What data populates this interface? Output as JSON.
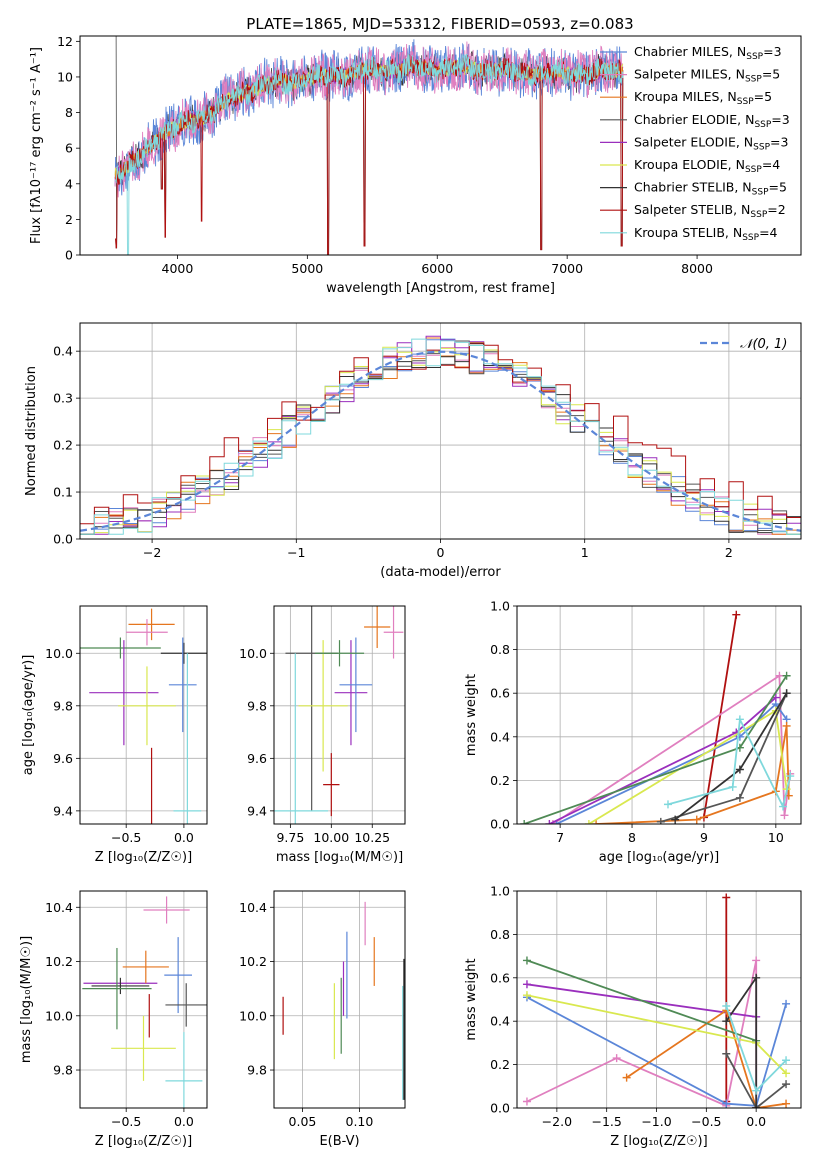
{
  "title": "PLATE=1865, MJD=53312, FIBERID=0593, z=0.083",
  "colors": {
    "chabrier_miles": "#5b86d8",
    "salpeter_miles": "#e07fbf",
    "kroupa_miles": "#e5761f",
    "chabrier_elodie": "#555555",
    "salpeter_elodie": "#9a2fbd",
    "kroupa_elodie": "#d9e84f",
    "chabrier_stelib": "#333333",
    "salpeter_stelib": "#b01010",
    "kroupa_stelib": "#7fd8dc",
    "green": "#4f8a55",
    "gauss": "#5b86d8"
  },
  "chart_data": [
    {
      "id": "spectrum",
      "type": "line",
      "xlabel": "wavelength [Angstrom, rest frame]",
      "ylabel": "Flux [fλ10⁻¹⁷ erg cm⁻² s⁻¹ A⁻¹]",
      "xlim": [
        3250,
        8800
      ],
      "ylim": [
        0,
        12.3
      ],
      "xticks": [
        4000,
        5000,
        6000,
        7000,
        8000
      ],
      "yticks": [
        0,
        2,
        4,
        6,
        8,
        10,
        12
      ],
      "legend_position": "right",
      "legend": [
        {
          "label": "Chabrier MILES, N",
          "sub": "SSP",
          "tail": "=3",
          "color": "#5b86d8"
        },
        {
          "label": "Salpeter MILES, N",
          "sub": "SSP",
          "tail": "=5",
          "color": "#e07fbf"
        },
        {
          "label": "Kroupa MILES, N",
          "sub": "SSP",
          "tail": "=5",
          "color": "#e5761f"
        },
        {
          "label": "Chabrier ELODIE, N",
          "sub": "SSP",
          "tail": "=3",
          "color": "#555555"
        },
        {
          "label": "Salpeter ELODIE, N",
          "sub": "SSP",
          "tail": "=3",
          "color": "#9a2fbd"
        },
        {
          "label": "Kroupa ELODIE, N",
          "sub": "SSP",
          "tail": "=4",
          "color": "#d9e84f"
        },
        {
          "label": "Chabrier STELIB, N",
          "sub": "SSP",
          "tail": "=5",
          "color": "#333333"
        },
        {
          "label": "Salpeter STELIB, N",
          "sub": "SSP",
          "tail": "=2",
          "color": "#b01010"
        },
        {
          "label": "Kroupa STELIB, N",
          "sub": "SSP",
          "tail": "=4",
          "color": "#7fd8dc"
        }
      ],
      "continuum": [
        [
          3520,
          4.6
        ],
        [
          3600,
          4.8
        ],
        [
          3700,
          5.4
        ],
        [
          3800,
          6.2
        ],
        [
          3900,
          6.9
        ],
        [
          4000,
          7.2
        ],
        [
          4100,
          7.5
        ],
        [
          4200,
          7.8
        ],
        [
          4300,
          8.2
        ],
        [
          4400,
          8.7
        ],
        [
          4500,
          9.1
        ],
        [
          4600,
          9.4
        ],
        [
          4700,
          9.6
        ],
        [
          4800,
          9.7
        ],
        [
          4900,
          9.8
        ],
        [
          5000,
          9.9
        ],
        [
          5200,
          10.1
        ],
        [
          5400,
          10.3
        ],
        [
          5600,
          10.4
        ],
        [
          5800,
          10.5
        ],
        [
          6000,
          10.5
        ],
        [
          6200,
          10.5
        ],
        [
          6400,
          10.4
        ],
        [
          6600,
          10.3
        ],
        [
          6800,
          10.2
        ],
        [
          7000,
          10.2
        ],
        [
          7200,
          10.2
        ],
        [
          7300,
          10.3
        ],
        [
          7400,
          10.4
        ]
      ],
      "dips": [
        [
          3520,
          0.9
        ],
        [
          3530,
          0.4
        ],
        [
          3880,
          3.7
        ],
        [
          3905,
          1.0
        ],
        [
          5160,
          0.0
        ],
        [
          5440,
          0.5
        ],
        [
          6800,
          0.3
        ],
        [
          7420,
          0.5
        ]
      ]
    },
    {
      "id": "residuals",
      "type": "histogram",
      "xlabel": "(data-model)/error",
      "ylabel": "Normed distribution",
      "xlim": [
        -2.5,
        2.5
      ],
      "ylim": [
        0,
        0.46
      ],
      "xticks": [
        -2,
        -1,
        0,
        1,
        2
      ],
      "yticks": [
        0.0,
        0.1,
        0.2,
        0.3,
        0.4
      ],
      "legend": [
        {
          "label": "𝒩(0, 1)",
          "style": "dashed",
          "color": "#5b86d8"
        }
      ],
      "legend_position": "top-right",
      "bin_width": 0.1,
      "gaussian": {
        "mean": 0,
        "sigma": 1
      }
    },
    {
      "id": "age_vs_Z",
      "type": "errorbar",
      "xlabel": "Z [log₁₀(Z/Z☉)]",
      "ylabel": "age  [log₁₀(age/yr)]",
      "xlim": [
        -0.9,
        0.2
      ],
      "ylim": [
        9.35,
        10.18
      ],
      "xticks": [
        -0.5,
        0.0
      ],
      "yticks": [
        9.4,
        9.6,
        9.8,
        10.0
      ],
      "points": [
        {
          "x": -0.55,
          "y": 10.02,
          "xerr": 0.35,
          "yerr": 0.04,
          "color": "#4f8a55"
        },
        {
          "x": -0.52,
          "y": 9.85,
          "xerr": 0.3,
          "yerr": 0.2,
          "color": "#9a2fbd"
        },
        {
          "x": -0.32,
          "y": 9.8,
          "xerr": 0.25,
          "yerr": 0.15,
          "color": "#d9e84f"
        },
        {
          "x": -0.28,
          "y": 10.11,
          "xerr": 0.2,
          "yerr": 0.06,
          "color": "#e5761f"
        },
        {
          "x": -0.32,
          "y": 10.08,
          "xerr": 0.18,
          "yerr": 0.05,
          "color": "#e07fbf"
        },
        {
          "x": -0.28,
          "y": 9.47,
          "xerr": 0.0,
          "yerr": 0.17,
          "color": "#b01010"
        },
        {
          "x": 0.0,
          "y": 10.0,
          "xerr": 0.2,
          "yerr": 0.04,
          "color": "#333333"
        },
        {
          "x": -0.01,
          "y": 9.88,
          "xerr": 0.12,
          "yerr": 0.18,
          "color": "#5b86d8"
        },
        {
          "x": 0.03,
          "y": 9.4,
          "xerr": 0.12,
          "yerr": 0.6,
          "color": "#7fd8dc"
        }
      ]
    },
    {
      "id": "age_vs_mass",
      "type": "errorbar",
      "xlabel": "mass [log₁₀(M/M☉)]",
      "ylabel": "",
      "xlim": [
        9.65,
        10.45
      ],
      "ylim": [
        9.35,
        10.18
      ],
      "xticks": [
        9.75,
        10.0,
        10.25
      ],
      "yticks": [
        9.4,
        9.6,
        9.8,
        10.0
      ],
      "points": [
        {
          "x": 9.88,
          "y": 10.0,
          "xerr": 0.16,
          "yerr": 0.6,
          "color": "#555555"
        },
        {
          "x": 9.78,
          "y": 9.4,
          "xerr": 0.2,
          "yerr": 0.6,
          "color": "#7fd8dc"
        },
        {
          "x": 9.95,
          "y": 9.8,
          "xerr": 0.15,
          "yerr": 0.25,
          "color": "#d9e84f"
        },
        {
          "x": 10.12,
          "y": 9.85,
          "xerr": 0.1,
          "yerr": 0.2,
          "color": "#9a2fbd"
        },
        {
          "x": 10.15,
          "y": 9.88,
          "xerr": 0.1,
          "yerr": 0.18,
          "color": "#5b86d8"
        },
        {
          "x": 10.0,
          "y": 9.5,
          "xerr": 0.05,
          "yerr": 0.12,
          "color": "#b01010"
        },
        {
          "x": 10.05,
          "y": 10.0,
          "xerr": 0.15,
          "yerr": 0.05,
          "color": "#4f8a55"
        },
        {
          "x": 10.28,
          "y": 10.1,
          "xerr": 0.08,
          "yerr": 0.08,
          "color": "#e5761f"
        },
        {
          "x": 10.38,
          "y": 10.08,
          "xerr": 0.06,
          "yerr": 0.1,
          "color": "#e07fbf"
        }
      ]
    },
    {
      "id": "weight_vs_age",
      "type": "line",
      "xlabel": "age  [log₁₀(age/yr)]",
      "ylabel": "mass weight",
      "xlim": [
        6.4,
        10.35
      ],
      "ylim": [
        0,
        1.0
      ],
      "xticks": [
        7,
        8,
        9,
        10
      ],
      "yticks": [
        0.0,
        0.2,
        0.4,
        0.6,
        0.8,
        1.0
      ],
      "series": [
        {
          "color": "#b01010",
          "x": [
            9.0,
            9.45
          ],
          "y": [
            0.03,
            0.96
          ]
        },
        {
          "color": "#e07fbf",
          "x": [
            6.9,
            10.05,
            10.12,
            10.2
          ],
          "y": [
            0.0,
            0.68,
            0.04,
            0.23
          ]
        },
        {
          "color": "#5b86d8",
          "x": [
            6.95,
            9.5,
            10.0,
            10.15
          ],
          "y": [
            0.0,
            0.4,
            0.55,
            0.48
          ]
        },
        {
          "color": "#9a2fbd",
          "x": [
            6.85,
            9.45,
            10.0
          ],
          "y": [
            0.0,
            0.42,
            0.58
          ]
        },
        {
          "color": "#e5761f",
          "x": [
            7.5,
            8.9,
            10.0,
            10.15,
            10.18
          ],
          "y": [
            0.0,
            0.02,
            0.15,
            0.45,
            0.13
          ]
        },
        {
          "color": "#d9e84f",
          "x": [
            7.4,
            10.0,
            10.15
          ],
          "y": [
            0.0,
            0.52,
            0.16
          ]
        },
        {
          "color": "#4f8a55",
          "x": [
            6.5,
            9.5,
            10.15
          ],
          "y": [
            0.0,
            0.35,
            0.68
          ]
        },
        {
          "color": "#555555",
          "x": [
            8.4,
            9.5,
            10.15
          ],
          "y": [
            0.01,
            0.12,
            0.6
          ]
        },
        {
          "color": "#333333",
          "x": [
            8.6,
            9.5,
            10.15
          ],
          "y": [
            0.02,
            0.25,
            0.6
          ]
        },
        {
          "color": "#7fd8dc",
          "x": [
            8.5,
            9.4,
            9.5,
            10.1,
            10.2
          ],
          "y": [
            0.09,
            0.17,
            0.48,
            0.08,
            0.22
          ]
        }
      ]
    },
    {
      "id": "mass_vs_Z",
      "type": "errorbar",
      "xlabel": "Z [log₁₀(Z/Z☉)]",
      "ylabel": "mass [log₁₀(M/M☉)]",
      "xlim": [
        -0.9,
        0.2
      ],
      "ylim": [
        9.66,
        10.46
      ],
      "xticks": [
        -0.5,
        0.0
      ],
      "yticks": [
        9.8,
        10.0,
        10.2,
        10.4
      ],
      "points": [
        {
          "x": -0.55,
          "y": 10.12,
          "xerr": 0.32,
          "yerr": 0.0,
          "color": "#9a2fbd"
        },
        {
          "x": -0.55,
          "y": 10.11,
          "xerr": 0.25,
          "yerr": 0.03,
          "color": "#333333"
        },
        {
          "x": -0.58,
          "y": 10.1,
          "xerr": 0.3,
          "yerr": 0.15,
          "color": "#4f8a55"
        },
        {
          "x": -0.33,
          "y": 10.18,
          "xerr": 0.2,
          "yerr": 0.06,
          "color": "#e5761f"
        },
        {
          "x": -0.35,
          "y": 9.88,
          "xerr": 0.28,
          "yerr": 0.12,
          "color": "#d9e84f"
        },
        {
          "x": -0.3,
          "y": 10.0,
          "xerr": 0.0,
          "yerr": 0.08,
          "color": "#b01010"
        },
        {
          "x": -0.15,
          "y": 10.39,
          "xerr": 0.2,
          "yerr": 0.05,
          "color": "#e07fbf"
        },
        {
          "x": -0.05,
          "y": 10.15,
          "xerr": 0.12,
          "yerr": 0.14,
          "color": "#5b86d8"
        },
        {
          "x": 0.02,
          "y": 10.04,
          "xerr": 0.18,
          "yerr": 0.08,
          "color": "#555555"
        },
        {
          "x": 0.0,
          "y": 9.76,
          "xerr": 0.16,
          "yerr": 0.18,
          "color": "#7fd8dc"
        }
      ]
    },
    {
      "id": "mass_vs_ebv",
      "type": "errorbar",
      "xlabel": "E(B-V)",
      "ylabel": "",
      "xlim": [
        0.025,
        0.14
      ],
      "ylim": [
        9.66,
        10.46
      ],
      "xticks": [
        0.05,
        0.1
      ],
      "xtick_labels": [
        "0.05",
        "0.10"
      ],
      "yticks": [
        9.8,
        10.0,
        10.2,
        10.4
      ],
      "points": [
        {
          "x": 0.033,
          "y": 10.0,
          "xerr": 0,
          "yerr": 0.07,
          "color": "#b01010"
        },
        {
          "x": 0.078,
          "y": 9.98,
          "xerr": 0,
          "yerr": 0.14,
          "color": "#d9e84f"
        },
        {
          "x": 0.084,
          "y": 10.0,
          "xerr": 0,
          "yerr": 0.14,
          "color": "#4f8a55"
        },
        {
          "x": 0.086,
          "y": 10.1,
          "xerr": 0,
          "yerr": 0.1,
          "color": "#9a2fbd"
        },
        {
          "x": 0.089,
          "y": 10.15,
          "xerr": 0,
          "yerr": 0.16,
          "color": "#5b86d8"
        },
        {
          "x": 0.105,
          "y": 10.34,
          "xerr": 0,
          "yerr": 0.08,
          "color": "#e07fbf"
        },
        {
          "x": 0.113,
          "y": 10.2,
          "xerr": 0,
          "yerr": 0.09,
          "color": "#e5761f"
        },
        {
          "x": 0.138,
          "y": 9.9,
          "xerr": 0,
          "yerr": 0.21,
          "color": "#7fd8dc"
        },
        {
          "x": 0.139,
          "y": 9.95,
          "xerr": 0,
          "yerr": 0.26,
          "color": "#333333"
        }
      ]
    },
    {
      "id": "weight_vs_Z",
      "type": "line",
      "xlabel": "Z [log₁₀(Z/Z☉)]",
      "ylabel": "mass weight",
      "xlim": [
        -2.4,
        0.45
      ],
      "ylim": [
        0,
        1.0
      ],
      "xticks": [
        -2.0,
        -1.5,
        -1.0,
        -0.5,
        0.0
      ],
      "xtick_labels": [
        "−2.0",
        "−1.5",
        "−1.0",
        "−0.5",
        "0.0"
      ],
      "yticks": [
        0.0,
        0.2,
        0.4,
        0.6,
        0.8,
        1.0
      ],
      "series": [
        {
          "color": "#b01010",
          "x": [
            -0.3,
            -0.3
          ],
          "y": [
            0.03,
            0.97
          ]
        },
        {
          "color": "#e07fbf",
          "x": [
            -2.3,
            -1.4,
            -0.3,
            0.0,
            0.0
          ],
          "y": [
            0.03,
            0.23,
            0.01,
            0.68,
            0.0
          ]
        },
        {
          "color": "#5b86d8",
          "x": [
            -2.3,
            -0.3,
            0.0,
            0.3
          ],
          "y": [
            0.51,
            0.02,
            0.01,
            0.48
          ]
        },
        {
          "color": "#9a2fbd",
          "x": [
            -2.3,
            0.0
          ],
          "y": [
            0.57,
            0.42
          ]
        },
        {
          "color": "#e5761f",
          "x": [
            -1.3,
            -0.3,
            0.0,
            0.3
          ],
          "y": [
            0.14,
            0.45,
            0.0,
            0.02
          ]
        },
        {
          "color": "#d9e84f",
          "x": [
            -2.3,
            0.0,
            0.3
          ],
          "y": [
            0.52,
            0.3,
            0.16
          ]
        },
        {
          "color": "#4f8a55",
          "x": [
            -2.3,
            0.0
          ],
          "y": [
            0.68,
            0.31
          ]
        },
        {
          "color": "#555555",
          "x": [
            -0.3,
            0.0,
            0.3
          ],
          "y": [
            0.25,
            0.0,
            0.11
          ]
        },
        {
          "color": "#333333",
          "x": [
            -0.3,
            0.0,
            0.0
          ],
          "y": [
            0.4,
            0.6,
            0.0
          ]
        },
        {
          "color": "#7fd8dc",
          "x": [
            -0.3,
            0.0,
            0.3
          ],
          "y": [
            0.47,
            0.08,
            0.22
          ]
        }
      ]
    }
  ]
}
